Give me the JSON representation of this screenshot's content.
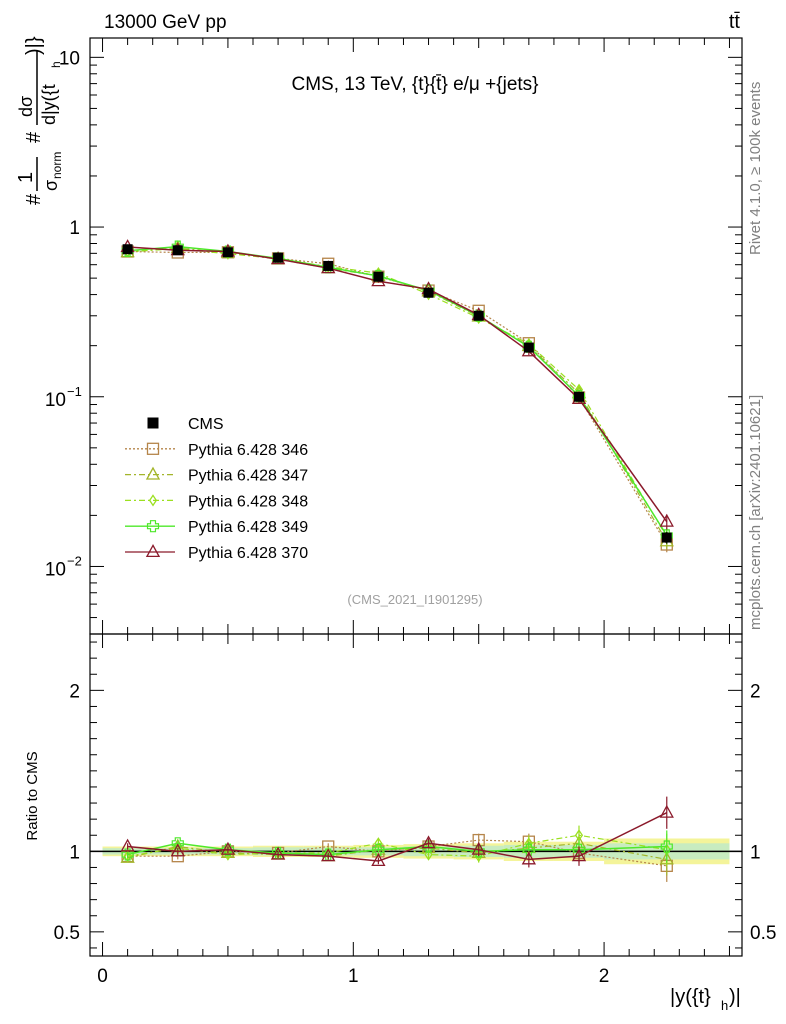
{
  "header": {
    "beam": "13000 GeV pp",
    "process": "tt̄"
  },
  "side": {
    "rivet": "Rivet 4.1.0, ≥ 100k events",
    "site": "mcplots.cern.ch [arXiv:2401.10621]"
  },
  "labels": {
    "yaxis_top": "#1/σ_norm #dσ/d|y({t}_h)|}",
    "yaxis_top_hash1": "#",
    "yaxis_top_one": "1",
    "yaxis_top_sigma": "σ",
    "yaxis_top_norm": "norm",
    "yaxis_top_hash2": "#",
    "yaxis_top_dsigma": "dσ",
    "yaxis_top_den": "d|y({t",
    "yaxis_top_den_sub": "h",
    "yaxis_top_den_close": ")|}",
    "yaxis_bottom": "Ratio to CMS",
    "xaxis": "|y({t}_h)|",
    "xaxis_main": "|y({t}",
    "xaxis_sub": "h",
    "xaxis_close": ")|",
    "analysis_id": "(CMS_2021_I1901295)"
  },
  "chart_data": {
    "type": "line",
    "title": "CMS, 13 TeV, {t}{t̄} e/μ +{jets}",
    "xlabel": "|y({t}_h)|",
    "ylabel": "1/σ_norm dσ/d|y({t}_h)|",
    "ratio_ylabel": "Ratio to CMS",
    "xlim": [
      -0.05,
      2.55
    ],
    "ylim": [
      0.004,
      13
    ],
    "ratio_ylim": [
      0.35,
      2.35
    ],
    "yscale": "log",
    "bins": [
      0,
      0.2,
      0.4,
      0.6,
      0.8,
      1.0,
      1.2,
      1.4,
      1.6,
      1.8,
      2.0,
      2.5
    ],
    "x": [
      0.1,
      0.3,
      0.5,
      0.7,
      0.9,
      1.1,
      1.3,
      1.5,
      1.7,
      1.9,
      2.25
    ],
    "x_ticks": [
      {
        "value": 0,
        "label": "0"
      },
      {
        "value": 1,
        "label": "1"
      },
      {
        "value": 2,
        "label": "2"
      }
    ],
    "y_ticks": [
      {
        "value": 10,
        "base": "10",
        "exp": ""
      },
      {
        "value": 1,
        "base": "1",
        "exp": ""
      },
      {
        "value": 0.1,
        "base": "10",
        "exp": "−1"
      },
      {
        "value": 0.01,
        "base": "10",
        "exp": "−2"
      }
    ],
    "ratio_ticks": [
      {
        "value": 0.5,
        "label": "0.5"
      },
      {
        "value": 1,
        "label": "1"
      },
      {
        "value": 2,
        "label": "2"
      }
    ],
    "data": {
      "name": "CMS",
      "values": [
        0.74,
        0.73,
        0.71,
        0.66,
        0.59,
        0.51,
        0.41,
        0.3,
        0.195,
        0.1,
        0.0148
      ],
      "stat_band": [
        0.02,
        0.02,
        0.02,
        0.025,
        0.025,
        0.025,
        0.03,
        0.035,
        0.04,
        0.04,
        0.05
      ],
      "total_band": [
        0.03,
        0.03,
        0.03,
        0.035,
        0.035,
        0.04,
        0.045,
        0.05,
        0.06,
        0.06,
        0.08
      ]
    },
    "series": [
      {
        "name": "Pythia 6.428 346",
        "color": "#b5854a",
        "marker": "square",
        "dash": "2,2",
        "ratio": [
          0.97,
          0.97,
          1.0,
          0.99,
          1.03,
          1.0,
          1.03,
          1.07,
          1.06,
          0.99,
          0.91
        ],
        "ratio_err": [
          0.02,
          0.02,
          0.02,
          0.02,
          0.02,
          0.02,
          0.03,
          0.04,
          0.05,
          0.06,
          0.1
        ]
      },
      {
        "name": "Pythia 6.428 347",
        "color": "#a3b52a",
        "marker": "triangle-open",
        "dash": "6,3,2,3",
        "ratio": [
          0.96,
          1.03,
          0.99,
          0.98,
          0.97,
          1.01,
          1.02,
          0.99,
          1.02,
          1.05,
          0.95
        ],
        "ratio_err": [
          0.02,
          0.02,
          0.02,
          0.02,
          0.02,
          0.02,
          0.03,
          0.04,
          0.05,
          0.06,
          0.1
        ]
      },
      {
        "name": "Pythia 6.428 348",
        "color": "#9be01f",
        "marker": "diamond",
        "dash": "6,3,2,3",
        "ratio": [
          0.97,
          1.02,
          0.98,
          0.99,
          0.99,
          1.05,
          0.98,
          0.97,
          1.05,
          1.1,
          1.01
        ],
        "ratio_err": [
          0.02,
          0.02,
          0.02,
          0.02,
          0.02,
          0.03,
          0.03,
          0.04,
          0.05,
          0.06,
          0.1
        ]
      },
      {
        "name": "Pythia 6.428 349",
        "color": "#4ee82a",
        "marker": "cross",
        "dash": "",
        "ratio": [
          0.98,
          1.05,
          1.01,
          0.99,
          0.98,
          1.01,
          1.03,
          1.0,
          1.01,
          1.01,
          1.03
        ],
        "ratio_err": [
          0.02,
          0.02,
          0.02,
          0.02,
          0.02,
          0.02,
          0.03,
          0.04,
          0.05,
          0.06,
          0.1
        ]
      },
      {
        "name": "Pythia 6.428 370",
        "color": "#8b1a2b",
        "marker": "triangle-open",
        "dash": "",
        "ratio": [
          1.03,
          1.0,
          1.01,
          0.98,
          0.97,
          0.94,
          1.05,
          1.01,
          0.95,
          0.97,
          1.24
        ],
        "ratio_err": [
          0.02,
          0.02,
          0.02,
          0.02,
          0.02,
          0.02,
          0.03,
          0.04,
          0.05,
          0.06,
          0.1
        ]
      }
    ]
  }
}
